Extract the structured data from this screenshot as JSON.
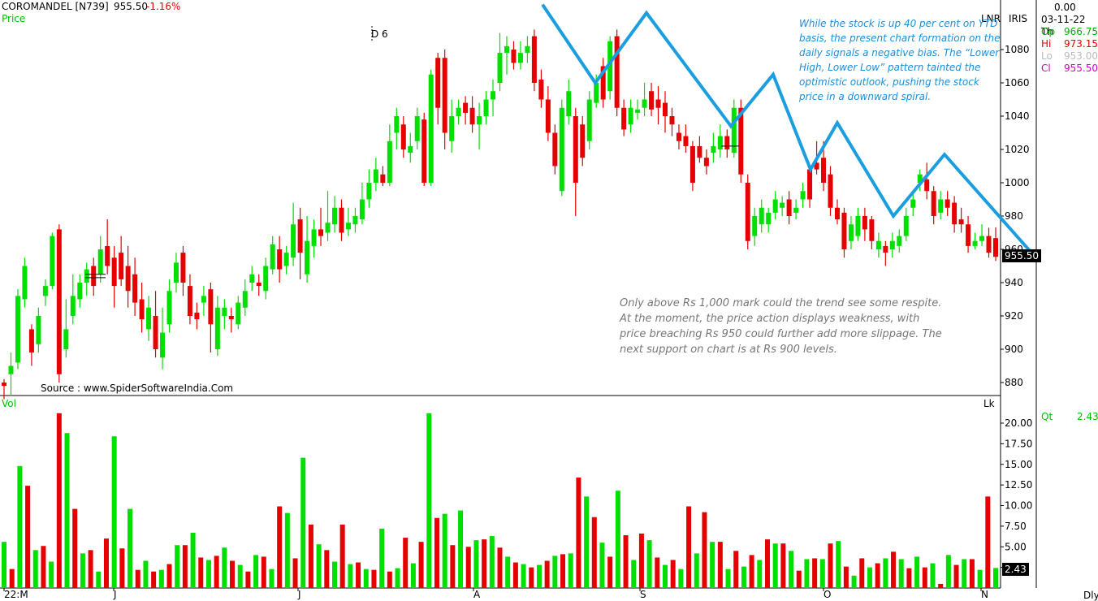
{
  "header": {
    "symbol": "COROMANDEL [N739]",
    "close": "955.50",
    "change": "-1.16%",
    "price_label": "Price",
    "drawing_label": "D 6",
    "lnr": "LNR",
    "iris": "IRIS"
  },
  "ohlc_panel": {
    "value_top": "0.00",
    "date": "03-11-22 Th",
    "rows": [
      {
        "label": "Op",
        "value": "966.75",
        "color": "#00b000"
      },
      {
        "label": "Hi",
        "value": "973.15",
        "color": "#e60000"
      },
      {
        "label": "Lo",
        "value": "953.00",
        "color": "#bbbbbb"
      },
      {
        "label": "Cl",
        "value": "955.50",
        "color": "#cc00cc"
      }
    ]
  },
  "volume_panel": {
    "label": "Vol",
    "lk": "Lk",
    "qt_label": "Qt",
    "qt_value": "2.43",
    "last_volume": "2.43"
  },
  "footer": {
    "dly": "Dly"
  },
  "source": "Source : www.SpiderSoftwareIndia.Com",
  "annotations": {
    "top": "While the stock is up 40 per cent on YTD basis, the present chart formation on the daily signals a negative bias. The “Lower High, Lower Low” pattern tainted the optimistic outlook, pushing the stock price in a downward spiral.",
    "bottom": "Only above Rs 1,000 mark could the trend see some respite. At the moment, the price action displays weakness, with price breaching Rs 950 could further add more slippage. The next support on chart is at Rs 900 levels."
  },
  "colors": {
    "up": "#00e000",
    "down": "#e60000",
    "zigzag": "#1a9ee0",
    "annotation_top": "#1a8fd8",
    "annotation_bottom": "#777777"
  },
  "chart_data": [
    {
      "type": "candlestick",
      "title": "",
      "y_ticks": [
        880,
        900,
        920,
        940,
        960,
        980,
        1000,
        1020,
        1040,
        1060,
        1080
      ],
      "ylim": [
        870,
        1100
      ],
      "x_ticks": [
        "22:M",
        "J",
        "J",
        "A",
        "S",
        "O",
        "N"
      ],
      "last_price": "955.50",
      "candles": [
        [
          880,
          878,
          882,
          870
        ],
        [
          885,
          890,
          898,
          872
        ],
        [
          892,
          932,
          936,
          888
        ],
        [
          930,
          950,
          955,
          925
        ],
        [
          912,
          898,
          915,
          890
        ],
        [
          903,
          920,
          925,
          898
        ],
        [
          932,
          938,
          942,
          926
        ],
        [
          938,
          968,
          970,
          936
        ],
        [
          972,
          885,
          975,
          880
        ],
        [
          900,
          912,
          930,
          895
        ],
        [
          920,
          932,
          945,
          915
        ],
        [
          930,
          940,
          945,
          925
        ],
        [
          940,
          948,
          952,
          932
        ],
        [
          950,
          938,
          955,
          932
        ],
        [
          945,
          960,
          968,
          940
        ],
        [
          962,
          950,
          978,
          945
        ],
        [
          955,
          938,
          962,
          925
        ],
        [
          958,
          942,
          968,
          938
        ],
        [
          950,
          935,
          962,
          925
        ],
        [
          945,
          928,
          955,
          920
        ],
        [
          930,
          918,
          940,
          910
        ],
        [
          912,
          925,
          932,
          905
        ],
        [
          920,
          900,
          935,
          895
        ],
        [
          895,
          910,
          925,
          888
        ],
        [
          915,
          935,
          942,
          910
        ],
        [
          940,
          952,
          958,
          934
        ],
        [
          958,
          940,
          962,
          932
        ],
        [
          938,
          920,
          945,
          915
        ],
        [
          922,
          918,
          928,
          912
        ],
        [
          928,
          932,
          938,
          920
        ],
        [
          936,
          915,
          940,
          898
        ],
        [
          900,
          925,
          932,
          896
        ],
        [
          920,
          925,
          930,
          912
        ],
        [
          920,
          918,
          925,
          910
        ],
        [
          915,
          928,
          932,
          912
        ],
        [
          925,
          935,
          942,
          920
        ],
        [
          940,
          945,
          950,
          935
        ],
        [
          940,
          938,
          945,
          932
        ],
        [
          935,
          950,
          955,
          930
        ],
        [
          948,
          963,
          968,
          945
        ],
        [
          960,
          948,
          968,
          940
        ],
        [
          950,
          958,
          962,
          945
        ],
        [
          955,
          975,
          988,
          950
        ],
        [
          978,
          958,
          985,
          942
        ],
        [
          945,
          965,
          980,
          940
        ],
        [
          962,
          972,
          978,
          955
        ],
        [
          972,
          968,
          985,
          962
        ],
        [
          970,
          976,
          995,
          965
        ],
        [
          975,
          985,
          992,
          970
        ],
        [
          985,
          970,
          990,
          965
        ],
        [
          972,
          976,
          985,
          968
        ],
        [
          975,
          980,
          985,
          970
        ],
        [
          978,
          990,
          1000,
          975
        ],
        [
          990,
          1000,
          1008,
          985
        ],
        [
          1000,
          1008,
          1015,
          995
        ],
        [
          1005,
          1000,
          1010,
          998
        ],
        [
          1000,
          1025,
          1035,
          998
        ],
        [
          1030,
          1040,
          1045,
          1020
        ],
        [
          1035,
          1020,
          1040,
          1015
        ],
        [
          1018,
          1022,
          1030,
          1012
        ],
        [
          1025,
          1040,
          1045,
          1020
        ],
        [
          1038,
          1000,
          1042,
          998
        ],
        [
          1000,
          1065,
          1068,
          998
        ],
        [
          1075,
          1045,
          1078,
          1035
        ],
        [
          1075,
          1030,
          1080,
          1020
        ],
        [
          1025,
          1040,
          1050,
          1018
        ],
        [
          1040,
          1045,
          1050,
          1035
        ],
        [
          1048,
          1042,
          1052,
          1035
        ],
        [
          1045,
          1035,
          1052,
          1030
        ],
        [
          1035,
          1040,
          1048,
          1020
        ],
        [
          1040,
          1050,
          1055,
          1035
        ],
        [
          1050,
          1055,
          1062,
          1040
        ],
        [
          1060,
          1078,
          1090,
          1055
        ],
        [
          1078,
          1082,
          1088,
          1065
        ],
        [
          1080,
          1072,
          1085,
          1068
        ],
        [
          1072,
          1078,
          1085,
          1068
        ],
        [
          1078,
          1082,
          1088,
          1072
        ],
        [
          1088,
          1060,
          1092,
          1055
        ],
        [
          1062,
          1050,
          1068,
          1045
        ],
        [
          1050,
          1030,
          1058,
          1025
        ],
        [
          1030,
          1010,
          1035,
          1005
        ],
        [
          995,
          1045,
          1050,
          992
        ],
        [
          1040,
          1055,
          1062,
          1035
        ],
        [
          1040,
          1000,
          1045,
          980
        ],
        [
          1035,
          1015,
          1040,
          1010
        ],
        [
          1025,
          1050,
          1055,
          1020
        ],
        [
          1048,
          1060,
          1065,
          1045
        ],
        [
          1070,
          1050,
          1075,
          1045
        ],
        [
          1055,
          1085,
          1088,
          1050
        ],
        [
          1088,
          1045,
          1092,
          1040
        ],
        [
          1045,
          1032,
          1050,
          1028
        ],
        [
          1035,
          1045,
          1050,
          1030
        ],
        [
          1042,
          1044,
          1050,
          1038
        ],
        [
          1045,
          1050,
          1060,
          1040
        ],
        [
          1055,
          1044,
          1060,
          1040
        ],
        [
          1050,
          1045,
          1058,
          1035
        ],
        [
          1048,
          1040,
          1055,
          1030
        ],
        [
          1040,
          1035,
          1045,
          1028
        ],
        [
          1030,
          1025,
          1035,
          1020
        ],
        [
          1028,
          1022,
          1035,
          1018
        ],
        [
          1022,
          1000,
          1025,
          995
        ],
        [
          1022,
          1015,
          1028,
          1012
        ],
        [
          1015,
          1010,
          1020,
          1005
        ],
        [
          1018,
          1022,
          1030,
          1012
        ],
        [
          1020,
          1028,
          1035,
          1015
        ],
        [
          1028,
          1020,
          1032,
          1015
        ],
        [
          1018,
          1045,
          1050,
          1015
        ],
        [
          1045,
          1005,
          1050,
          1000
        ],
        [
          1000,
          965,
          1005,
          960
        ],
        [
          968,
          980,
          985,
          962
        ],
        [
          975,
          985,
          990,
          970
        ],
        [
          975,
          982,
          985,
          970
        ],
        [
          982,
          990,
          995,
          978
        ],
        [
          985,
          988,
          992,
          980
        ],
        [
          990,
          980,
          995,
          975
        ],
        [
          982,
          985,
          990,
          978
        ],
        [
          990,
          995,
          1000,
          985
        ],
        [
          1008,
          990,
          1010,
          985
        ],
        [
          1012,
          1008,
          1025,
          1005
        ],
        [
          1015,
          1000,
          1025,
          995
        ],
        [
          1005,
          985,
          1010,
          980
        ],
        [
          985,
          978,
          990,
          975
        ],
        [
          982,
          960,
          985,
          955
        ],
        [
          965,
          975,
          980,
          960
        ],
        [
          968,
          980,
          985,
          965
        ],
        [
          980,
          972,
          985,
          965
        ],
        [
          978,
          965,
          980,
          960
        ],
        [
          960,
          965,
          970,
          955
        ],
        [
          962,
          958,
          965,
          950
        ],
        [
          960,
          965,
          970,
          955
        ],
        [
          962,
          968,
          972,
          958
        ],
        [
          968,
          980,
          985,
          965
        ],
        [
          985,
          990,
          995,
          980
        ],
        [
          1000,
          1005,
          1008,
          995
        ],
        [
          1002,
          995,
          1012,
          990
        ],
        [
          995,
          980,
          998,
          975
        ],
        [
          982,
          990,
          995,
          978
        ],
        [
          990,
          985,
          995,
          980
        ],
        [
          988,
          975,
          992,
          970
        ],
        [
          978,
          975,
          985,
          970
        ],
        [
          975,
          962,
          980,
          958
        ],
        [
          962,
          965,
          970,
          960
        ],
        [
          965,
          968,
          975,
          962
        ],
        [
          968,
          958,
          973,
          955
        ],
        [
          966.75,
          955.5,
          973.15,
          953
        ]
      ]
    },
    {
      "type": "bar",
      "title": "",
      "y_ticks": [
        2.5,
        5.0,
        7.5,
        10.0,
        12.5,
        15.0,
        17.5,
        20.0
      ],
      "ylim": [
        0,
        21.5
      ],
      "values": [
        5.6,
        2.3,
        14.8,
        12.4,
        4.6,
        5.1,
        3.2,
        21.2,
        18.8,
        9.6,
        4.2,
        4.6,
        2.0,
        6.0,
        18.4,
        4.8,
        9.6,
        2.2,
        3.3,
        2.0,
        2.2,
        2.9,
        5.2,
        5.2,
        6.7,
        3.7,
        3.4,
        3.9,
        4.9,
        3.3,
        2.8,
        2.0,
        4.0,
        3.8,
        2.3,
        9.9,
        9.1,
        3.6,
        15.8,
        7.7,
        5.3,
        4.6,
        3.2,
        7.7,
        2.9,
        3.1,
        2.3,
        2.2,
        7.2,
        2.0,
        2.4,
        6.1,
        3.0,
        5.6,
        21.2,
        8.5,
        9.0,
        5.2,
        9.4,
        5.0,
        5.8,
        5.9,
        6.3,
        4.9,
        3.8,
        3.1,
        2.9,
        2.5,
        2.8,
        3.3,
        3.9,
        4.1,
        4.2,
        13.4,
        11.1,
        8.6,
        5.5,
        3.8,
        11.8,
        6.4,
        3.4,
        6.6,
        5.8,
        3.7,
        2.8,
        3.4,
        2.3,
        9.9,
        4.2,
        9.2,
        5.6,
        5.6,
        2.3,
        4.5,
        2.6,
        4.0,
        3.4,
        5.9,
        5.4,
        5.4,
        4.5,
        2.1,
        3.5,
        3.6,
        3.5,
        5.4,
        5.7,
        2.6,
        1.5,
        3.6,
        2.5,
        3.0,
        3.6,
        4.4,
        3.5,
        2.4,
        3.8,
        2.5,
        3.0,
        0.5,
        4.0,
        2.8,
        3.5,
        3.5,
        2.2,
        11.1,
        2.43
      ]
    }
  ]
}
